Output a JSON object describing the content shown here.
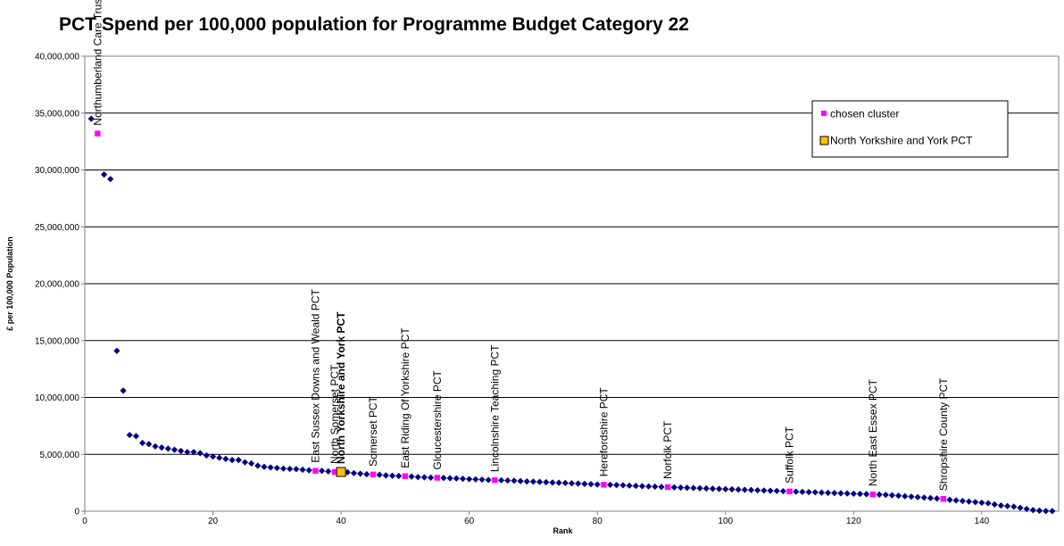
{
  "chart_data": {
    "type": "scatter",
    "title": "PCT Spend per 100,000 population for Programme Budget Category 22",
    "xlabel": "Rank",
    "ylabel": "£ per 100,000 Population",
    "xlim": [
      0,
      152
    ],
    "ylim": [
      0,
      40000000
    ],
    "x_ticks": [
      "0",
      "20",
      "40",
      "60",
      "80",
      "100",
      "120",
      "140"
    ],
    "x_tick_values": [
      0,
      20,
      40,
      60,
      80,
      100,
      120,
      140
    ],
    "y_ticks": [
      "0",
      "5,000,000",
      "10,000,000",
      "15,000,000",
      "20,000,000",
      "25,000,000",
      "30,000,000",
      "35,000,000",
      "40,000,000"
    ],
    "y_tick_values": [
      0,
      5000000,
      10000000,
      15000000,
      20000000,
      25000000,
      30000000,
      35000000,
      40000000
    ],
    "grid": "horizontal",
    "legend_position": "top-right",
    "colors": {
      "all_pcts": "#000080",
      "chosen_cluster": "#ff00ff",
      "highlight_fill": "#ffc000",
      "highlight_border": "#000000"
    },
    "series": [
      {
        "key": "all",
        "marker": "diamond",
        "points": [
          [
            1,
            34500000
          ],
          [
            3,
            29600000
          ],
          [
            4,
            29200000
          ],
          [
            5,
            14100000
          ],
          [
            6,
            10600000
          ],
          [
            7,
            6700000
          ],
          [
            8,
            6600000
          ],
          [
            9,
            6000000
          ],
          [
            10,
            5900000
          ],
          [
            11,
            5700000
          ],
          [
            12,
            5600000
          ],
          [
            13,
            5500000
          ],
          [
            14,
            5400000
          ],
          [
            15,
            5300000
          ],
          [
            16,
            5200000
          ],
          [
            17,
            5200000
          ],
          [
            18,
            5100000
          ],
          [
            19,
            4900000
          ],
          [
            20,
            4800000
          ],
          [
            21,
            4700000
          ],
          [
            22,
            4600000
          ],
          [
            23,
            4500000
          ],
          [
            24,
            4500000
          ],
          [
            25,
            4300000
          ],
          [
            26,
            4200000
          ],
          [
            27,
            4000000
          ],
          [
            28,
            3900000
          ],
          [
            29,
            3850000
          ],
          [
            30,
            3800000
          ],
          [
            31,
            3750000
          ],
          [
            32,
            3720000
          ],
          [
            33,
            3700000
          ],
          [
            34,
            3650000
          ],
          [
            35,
            3600000
          ],
          [
            37,
            3550000
          ],
          [
            38,
            3500000
          ],
          [
            41,
            3420000
          ],
          [
            42,
            3350000
          ],
          [
            43,
            3300000
          ],
          [
            44,
            3250000
          ],
          [
            46,
            3200000
          ],
          [
            47,
            3150000
          ],
          [
            48,
            3120000
          ],
          [
            49,
            3100000
          ],
          [
            51,
            3050000
          ],
          [
            52,
            3000000
          ],
          [
            53,
            2980000
          ],
          [
            54,
            2950000
          ],
          [
            56,
            2920000
          ],
          [
            57,
            2900000
          ],
          [
            58,
            2880000
          ],
          [
            59,
            2850000
          ],
          [
            60,
            2820000
          ],
          [
            61,
            2800000
          ],
          [
            62,
            2780000
          ],
          [
            63,
            2750000
          ],
          [
            65,
            2720000
          ],
          [
            66,
            2700000
          ],
          [
            67,
            2680000
          ],
          [
            68,
            2650000
          ],
          [
            69,
            2620000
          ],
          [
            70,
            2600000
          ],
          [
            71,
            2580000
          ],
          [
            72,
            2550000
          ],
          [
            73,
            2520000
          ],
          [
            74,
            2500000
          ],
          [
            75,
            2480000
          ],
          [
            76,
            2450000
          ],
          [
            77,
            2430000
          ],
          [
            78,
            2400000
          ],
          [
            79,
            2380000
          ],
          [
            80,
            2350000
          ],
          [
            82,
            2320000
          ],
          [
            83,
            2300000
          ],
          [
            84,
            2280000
          ],
          [
            85,
            2250000
          ],
          [
            86,
            2230000
          ],
          [
            87,
            2200000
          ],
          [
            88,
            2180000
          ],
          [
            89,
            2160000
          ],
          [
            90,
            2140000
          ],
          [
            92,
            2100000
          ],
          [
            93,
            2080000
          ],
          [
            94,
            2060000
          ],
          [
            95,
            2040000
          ],
          [
            96,
            2020000
          ],
          [
            97,
            2000000
          ],
          [
            98,
            1980000
          ],
          [
            99,
            1960000
          ],
          [
            100,
            1940000
          ],
          [
            101,
            1920000
          ],
          [
            102,
            1900000
          ],
          [
            103,
            1880000
          ],
          [
            104,
            1860000
          ],
          [
            105,
            1840000
          ],
          [
            106,
            1820000
          ],
          [
            107,
            1800000
          ],
          [
            108,
            1780000
          ],
          [
            109,
            1760000
          ],
          [
            111,
            1720000
          ],
          [
            112,
            1700000
          ],
          [
            113,
            1680000
          ],
          [
            114,
            1660000
          ],
          [
            115,
            1640000
          ],
          [
            116,
            1620000
          ],
          [
            117,
            1600000
          ],
          [
            118,
            1580000
          ],
          [
            119,
            1560000
          ],
          [
            120,
            1540000
          ],
          [
            121,
            1520000
          ],
          [
            122,
            1500000
          ],
          [
            124,
            1460000
          ],
          [
            125,
            1440000
          ],
          [
            126,
            1400000
          ],
          [
            127,
            1360000
          ],
          [
            128,
            1320000
          ],
          [
            129,
            1280000
          ],
          [
            130,
            1240000
          ],
          [
            131,
            1200000
          ],
          [
            132,
            1160000
          ],
          [
            133,
            1120000
          ],
          [
            135,
            1000000
          ],
          [
            136,
            950000
          ],
          [
            137,
            900000
          ],
          [
            138,
            850000
          ],
          [
            139,
            800000
          ],
          [
            140,
            750000
          ],
          [
            141,
            700000
          ],
          [
            142,
            600000
          ],
          [
            143,
            500000
          ],
          [
            144,
            450000
          ],
          [
            145,
            400000
          ],
          [
            146,
            300000
          ],
          [
            147,
            200000
          ],
          [
            148,
            100000
          ],
          [
            149,
            50000
          ],
          [
            150,
            20000
          ],
          [
            151,
            10000
          ]
        ]
      },
      {
        "key": "cluster",
        "name": "chosen cluster",
        "marker": "square",
        "points": [
          [
            2,
            33200000
          ],
          [
            36,
            3550000
          ],
          [
            39,
            3450000
          ],
          [
            45,
            3230000
          ],
          [
            50,
            3080000
          ],
          [
            55,
            2940000
          ],
          [
            64,
            2740000
          ],
          [
            81,
            2330000
          ],
          [
            91,
            2120000
          ],
          [
            110,
            1740000
          ],
          [
            123,
            1480000
          ],
          [
            134,
            1080000
          ]
        ]
      },
      {
        "key": "highlight",
        "name": "North Yorkshire and York PCT",
        "marker": "square-large",
        "points": [
          [
            40,
            3450000
          ]
        ]
      }
    ],
    "point_labels": [
      {
        "text": "Northumberland Care Trust",
        "x": 2,
        "y": 33200000,
        "bold": false
      },
      {
        "text": "East Sussex Downs and Weald PCT",
        "x": 36,
        "y": 3550000,
        "bold": false
      },
      {
        "text": "North Somerset PCT",
        "x": 39,
        "y": 3450000,
        "bold": false
      },
      {
        "text": "North Yorkshire and York PCT",
        "x": 40,
        "y": 3450000,
        "bold": true
      },
      {
        "text": "Somerset PCT",
        "x": 45,
        "y": 3230000,
        "bold": false
      },
      {
        "text": "East Riding Of Yorkshire PCT",
        "x": 50,
        "y": 3080000,
        "bold": false
      },
      {
        "text": "Gloucestershire PCT",
        "x": 55,
        "y": 2940000,
        "bold": false
      },
      {
        "text": "Lincolnshire Teaching PCT",
        "x": 64,
        "y": 2740000,
        "bold": false
      },
      {
        "text": "Herefordshire PCT",
        "x": 81,
        "y": 2330000,
        "bold": false
      },
      {
        "text": "Norfolk PCT",
        "x": 91,
        "y": 2120000,
        "bold": false
      },
      {
        "text": "Suffolk PCT",
        "x": 110,
        "y": 1740000,
        "bold": false
      },
      {
        "text": "North East Essex PCT",
        "x": 123,
        "y": 1480000,
        "bold": false
      },
      {
        "text": "Shropshire County PCT",
        "x": 134,
        "y": 1080000,
        "bold": false
      }
    ]
  }
}
